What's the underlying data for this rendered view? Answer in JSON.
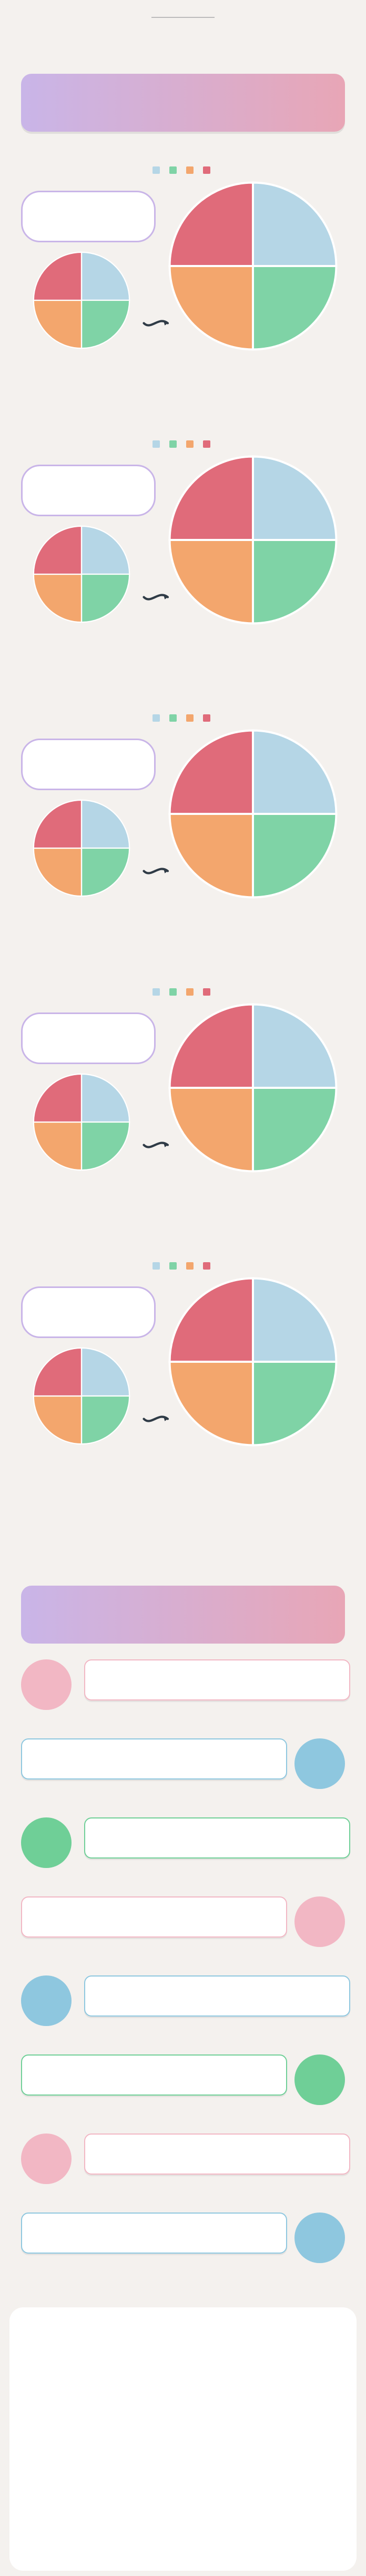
{
  "header": {
    "title": "",
    "subtitle": ""
  },
  "banner": {
    "text": ""
  },
  "sections": [
    {
      "title": "",
      "legend": [
        "",
        "",
        "",
        ""
      ],
      "callout_kicker": "",
      "callout_value": "",
      "small_chart": {
        "caption": ""
      },
      "big_chart": {
        "caption": ""
      },
      "colors": [
        "#b5d6e6",
        "#7fd3a6",
        "#f3a66d",
        "#e06b7a"
      ]
    },
    {
      "title": "",
      "legend": [
        "",
        "",
        "",
        ""
      ],
      "callout_kicker": "",
      "callout_value": "",
      "small_chart": {
        "caption": ""
      },
      "big_chart": {
        "caption": ""
      },
      "colors": [
        "#b5d6e6",
        "#7fd3a6",
        "#f3a66d",
        "#e06b7a"
      ]
    },
    {
      "title": "",
      "legend": [
        "",
        "",
        "",
        ""
      ],
      "callout_kicker": "",
      "callout_value": "",
      "small_chart": {
        "caption": ""
      },
      "big_chart": {
        "caption": ""
      },
      "colors": [
        "#b5d6e6",
        "#7fd3a6",
        "#f3a66d",
        "#e06b7a"
      ]
    },
    {
      "title": "",
      "legend": [
        "",
        "",
        "",
        ""
      ],
      "callout_kicker": "",
      "callout_value": "",
      "small_chart": {
        "caption": ""
      },
      "big_chart": {
        "caption": ""
      },
      "colors": [
        "#b5d6e6",
        "#7fd3a6",
        "#f3a66d",
        "#e06b7a"
      ]
    },
    {
      "title": "",
      "legend": [
        "",
        "",
        "",
        ""
      ],
      "callout_kicker": "",
      "callout_value": "",
      "small_chart": {
        "caption": ""
      },
      "big_chart": {
        "caption": ""
      },
      "colors": [
        "#b5d6e6",
        "#7fd3a6",
        "#f3a66d",
        "#e06b7a"
      ]
    }
  ],
  "voices_banner": {
    "text": ""
  },
  "voices": [
    {
      "side": "left",
      "color": "pink",
      "text": "",
      "age": ""
    },
    {
      "side": "right",
      "color": "blue",
      "text": "",
      "age": ""
    },
    {
      "side": "left",
      "color": "green",
      "text": "",
      "age": ""
    },
    {
      "side": "right",
      "color": "pink",
      "text": "",
      "age": ""
    },
    {
      "side": "left",
      "color": "blue",
      "text": "",
      "age": ""
    },
    {
      "side": "right",
      "color": "green",
      "text": "",
      "age": ""
    },
    {
      "side": "left",
      "color": "pink",
      "text": "",
      "age": ""
    },
    {
      "side": "right",
      "color": "blue",
      "text": "",
      "age": ""
    }
  ],
  "recommendation": {
    "title": ""
  }
}
